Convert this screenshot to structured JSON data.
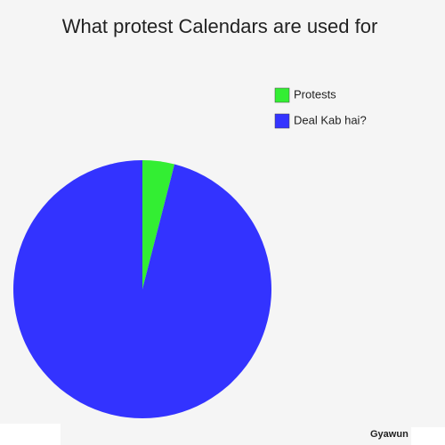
{
  "chart_data": {
    "type": "pie",
    "title": "What protest Calendars are used for",
    "categories": [
      "Protests",
      "Deal Kab hai?"
    ],
    "values": [
      4,
      96
    ],
    "colors": [
      "#33ee33",
      "#3333ff"
    ],
    "legend": "top-right"
  },
  "watermark": "Gyawun"
}
